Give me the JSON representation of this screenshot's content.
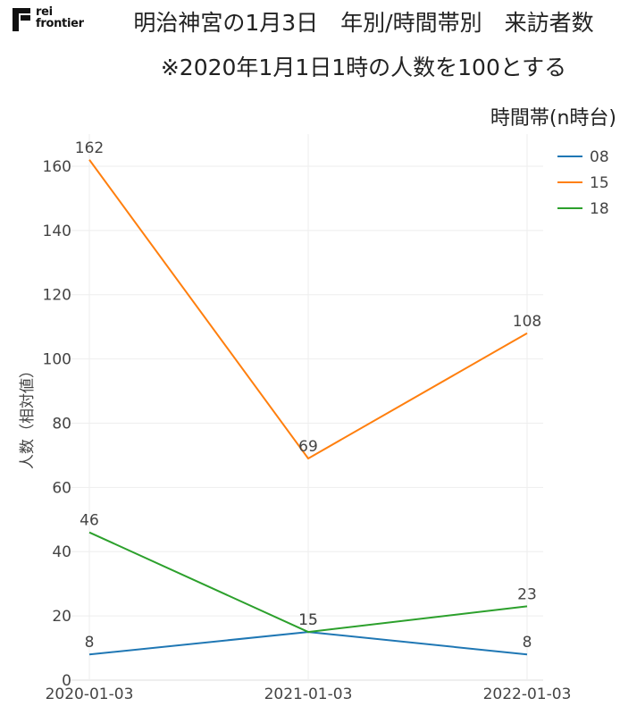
{
  "header": {
    "logo_line1": "rei",
    "logo_line2": "frontier",
    "title_line1": "明治神宮の1月3日　年別/時間帯別　来訪者数",
    "title_line2": "※2020年1月1日1時の人数を100とする"
  },
  "colors": {
    "accent": "#222222"
  },
  "chart_data": {
    "type": "line",
    "title": "明治神宮の1月3日　年別/時間帯別　来訪者数",
    "subtitle": "※2020年1月1日1時の人数を100とする",
    "xlabel": "",
    "ylabel": "人数（相対値）",
    "categories": [
      "2020-01-03",
      "2021-01-03",
      "2022-01-03"
    ],
    "ylim": [
      0,
      170
    ],
    "yticks": [
      0,
      20,
      40,
      60,
      80,
      100,
      120,
      140,
      160
    ],
    "grid": true,
    "legend_title": "時間帯(n時台)",
    "legend_position": "top-right",
    "series": [
      {
        "name": "08",
        "color": "#1f77b4",
        "values": [
          8,
          15,
          8
        ],
        "labels": [
          "8",
          "15",
          "8"
        ]
      },
      {
        "name": "15",
        "color": "#ff7f0e",
        "values": [
          162,
          69,
          108
        ],
        "labels": [
          "162",
          "69",
          "108"
        ]
      },
      {
        "name": "18",
        "color": "#2ca02c",
        "values": [
          46,
          15,
          23
        ],
        "labels": [
          "46",
          "15",
          "23"
        ]
      }
    ]
  }
}
